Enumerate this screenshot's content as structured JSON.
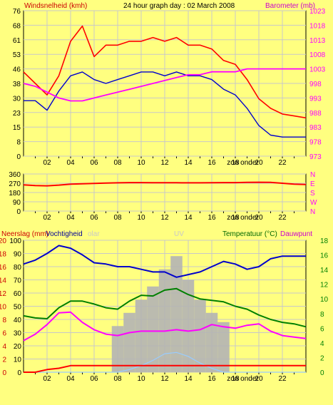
{
  "header": {
    "left_label": "Windsnelheid (kmh)",
    "title": "24 hour graph day : 02 March 2008",
    "right_label": "Barometer (mb)"
  },
  "colors": {
    "background": "#ffff80",
    "plot": "#ffff80",
    "frame": "#000000",
    "grid": "#c8c8c8",
    "wind_gust": "#ff0000",
    "wind_avg": "#0000cc",
    "barometer": "#ff00ff",
    "direction": "#ff0000",
    "rain": "#ff0000",
    "humidity": "#0000cc",
    "temperature": "#008000",
    "dewpoint": "#ff00ff",
    "solar": "#b4b4b4",
    "uv": "#99ccff",
    "green_axis": "#008000"
  },
  "chart_data": [
    {
      "type": "line",
      "id": "wind_baro",
      "title": "24 hour graph day : 02 March 2008",
      "ylabel": "Windsnelheid (kmh)",
      "y2label": "Barometer (mb)",
      "xlabel": "zon onder",
      "x_ticks": [
        "02",
        "04",
        "06",
        "08",
        "10",
        "12",
        "14",
        "16",
        "18",
        "20",
        "22"
      ],
      "y_ticks": [
        "0",
        "8",
        "15",
        "23",
        "30",
        "38",
        "46",
        "53",
        "61",
        "68",
        "76"
      ],
      "y2_ticks": [
        "973",
        "978",
        "983",
        "988",
        "993",
        "998",
        "1003",
        "1008",
        "1013",
        "1018",
        "1023"
      ],
      "ylim": [
        0,
        76
      ],
      "y2lim": [
        973,
        1023
      ],
      "x": [
        0,
        1,
        2,
        3,
        4,
        5,
        6,
        7,
        8,
        9,
        10,
        11,
        12,
        13,
        14,
        15,
        16,
        17,
        18,
        19,
        20,
        21,
        22,
        23,
        24
      ],
      "series": [
        {
          "name": "Windsnelheid (kmh)",
          "axis": "left",
          "values": [
            44,
            38,
            32,
            42,
            60,
            68,
            52,
            58,
            58,
            60,
            60,
            62,
            60,
            62,
            58,
            58,
            56,
            50,
            48,
            40,
            30,
            25,
            22,
            21,
            20
          ]
        },
        {
          "name": "",
          "axis": "left",
          "values": [
            29,
            29,
            24,
            34,
            42,
            44,
            40,
            38,
            40,
            42,
            44,
            44,
            42,
            44,
            42,
            42,
            40,
            35,
            32,
            25,
            16,
            11,
            10,
            10,
            10
          ]
        },
        {
          "name": "Barometer (mb)",
          "axis": "right",
          "values": [
            998,
            997,
            995,
            993,
            992,
            992,
            993,
            994,
            995,
            996,
            997,
            998,
            999,
            1000,
            1001,
            1001,
            1002,
            1002,
            1002,
            1003,
            1003,
            1003,
            1003,
            1003,
            1003
          ]
        }
      ]
    },
    {
      "type": "line",
      "id": "direction",
      "x_ticks": [
        "02",
        "04",
        "06",
        "08",
        "10",
        "12",
        "14",
        "16",
        "18",
        "20",
        "22"
      ],
      "y_ticks": [
        "0",
        "90",
        "180",
        "270",
        "360"
      ],
      "y2_ticks": [
        "N",
        "W",
        "S",
        "E",
        "N"
      ],
      "ylim": [
        0,
        360
      ],
      "xlabel": "zon onder",
      "x": [
        0,
        1,
        2,
        3,
        4,
        5,
        6,
        7,
        8,
        9,
        10,
        11,
        12,
        13,
        14,
        15,
        16,
        17,
        18,
        19,
        20,
        21,
        22,
        23,
        24
      ],
      "series": [
        {
          "name": "",
          "values": [
            255,
            248,
            245,
            252,
            262,
            265,
            268,
            272,
            274,
            276,
            276,
            275,
            275,
            275,
            274,
            274,
            275,
            276,
            276,
            278,
            280,
            278,
            270,
            262,
            258
          ]
        }
      ]
    },
    {
      "type": "line",
      "id": "rain_hum_temp",
      "labels": {
        "rain": "Neerslag (mm)",
        "humidity": "Vochtigheid",
        "solar": "olar",
        "uv": "UV",
        "temperature": "Temperatuur (°C)",
        "dewpoint": "Dauwpunt"
      },
      "x_ticks": [
        "02",
        "04",
        "06",
        "08",
        "10",
        "12",
        "14",
        "16",
        "18",
        "20",
        "22"
      ],
      "y_ticks": [
        "0",
        "2",
        "4",
        "6",
        "8",
        "10",
        "12",
        "14",
        "16",
        "18",
        "20"
      ],
      "y2_ticks": [
        "0",
        "10",
        "20",
        "30",
        "40",
        "50",
        "60",
        "70",
        "80",
        "90",
        "100"
      ],
      "y3_ticks": [
        "0",
        "2",
        "4",
        "6",
        "8",
        "10",
        "12",
        "14",
        "16",
        "18"
      ],
      "ylim": [
        0,
        20
      ],
      "y3lim": [
        0,
        18
      ],
      "xlabel": "zon onder",
      "x": [
        0,
        1,
        2,
        3,
        4,
        5,
        6,
        7,
        8,
        9,
        10,
        11,
        12,
        13,
        14,
        15,
        16,
        17,
        18,
        19,
        20,
        21,
        22,
        23,
        24
      ],
      "series": [
        {
          "name": "Neerslag (mm)",
          "axis": "rain_mm",
          "values": [
            0,
            0,
            0.4,
            0.6,
            1.0,
            1.0,
            1.0,
            1.0,
            1.0,
            1.0,
            1.0,
            1.0,
            1.0,
            1.0,
            1.0,
            1.0,
            1.0,
            1.0,
            1.0,
            1.0,
            1.0,
            1.0,
            1.0,
            1.0,
            1.0
          ]
        },
        {
          "name": "Vochtigheid",
          "axis": "left",
          "values": [
            82,
            85,
            90,
            96,
            94,
            89,
            83,
            82,
            80,
            80,
            78,
            76,
            76,
            72,
            74,
            76,
            80,
            84,
            82,
            78,
            80,
            86,
            88,
            88,
            88
          ]
        },
        {
          "name": "Temperatuur (°C)",
          "axis": "right",
          "values": [
            7.7,
            7.4,
            7.3,
            8.8,
            9.7,
            9.7,
            9.3,
            8.8,
            8.6,
            9.7,
            10.5,
            10.4,
            11.2,
            11.4,
            10.6,
            10.0,
            9.8,
            9.6,
            9.0,
            8.6,
            7.8,
            7.2,
            6.8,
            6.6,
            6.2
          ]
        },
        {
          "name": "Dauwpunt",
          "axis": "right",
          "values": [
            4.3,
            5.2,
            6.5,
            8.1,
            8.2,
            6.8,
            5.8,
            5.2,
            5.0,
            5.4,
            5.6,
            5.6,
            5.6,
            5.8,
            5.6,
            5.8,
            6.5,
            6.2,
            6.0,
            6.4,
            6.6,
            5.6,
            5.0,
            4.8,
            4.6
          ]
        },
        {
          "name": "Solar",
          "axis": "solar",
          "values": [
            0,
            0,
            0,
            0,
            0,
            0,
            0,
            0,
            35,
            45,
            55,
            65,
            78,
            88,
            70,
            55,
            45,
            38,
            0,
            0,
            0,
            0,
            0,
            0,
            0
          ]
        },
        {
          "name": "UV",
          "axis": "solar",
          "values": [
            0,
            0,
            0,
            0,
            0,
            0,
            0,
            0,
            0,
            2,
            5,
            9,
            14,
            15,
            12,
            7,
            3,
            0,
            0,
            0,
            0,
            0,
            0,
            0,
            0
          ]
        }
      ]
    }
  ]
}
